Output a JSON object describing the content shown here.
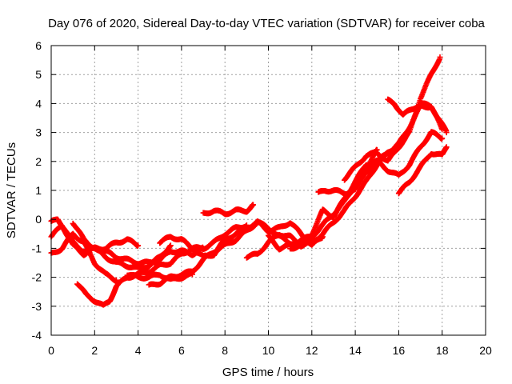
{
  "chart_data": {
    "type": "scatter",
    "title": "Day 076 of 2020, Sidereal Day-to-day VTEC variation (SDTVAR) for receiver coba",
    "xlabel": "GPS time / hours",
    "ylabel": "SDTVAR / TECUs",
    "xlim": [
      0,
      20
    ],
    "ylim": [
      -4,
      6
    ],
    "x_ticks": [
      0,
      2,
      4,
      6,
      8,
      10,
      12,
      14,
      16,
      18,
      20
    ],
    "y_ticks": [
      -4,
      -3,
      -2,
      -1,
      0,
      1,
      2,
      3,
      4,
      5,
      6
    ],
    "grid": true,
    "marker_color": "#ff0000",
    "marker": "plus",
    "series": [
      {
        "x": [
          0.0,
          0.5,
          1.0,
          1.5,
          2.0,
          2.5,
          3.0,
          3.5,
          4.0
        ],
        "y": [
          -0.6,
          -0.2,
          -0.9,
          -1.2,
          -1.0,
          -1.0,
          -0.8,
          -0.7,
          -0.9
        ]
      },
      {
        "x": [
          0.0,
          0.3,
          0.6,
          1.0,
          1.5,
          2.0,
          2.5,
          3.0,
          3.5,
          4.0,
          4.5,
          5.0,
          5.5,
          6.0,
          6.5,
          7.0
        ],
        "y": [
          -0.1,
          0.0,
          -0.3,
          -0.8,
          -1.1,
          -1.0,
          -1.1,
          -1.3,
          -1.4,
          -1.5,
          -1.5,
          -1.4,
          -1.1,
          -1.1,
          -1.2,
          -1.0
        ]
      },
      {
        "x": [
          0.0,
          0.5,
          1.0,
          1.5,
          2.0,
          2.5,
          3.0
        ],
        "y": [
          -1.2,
          -1.0,
          -0.5,
          -0.8,
          -1.5,
          -1.9,
          -2.1
        ]
      },
      {
        "x": [
          1.2,
          1.6,
          2.0,
          2.4,
          2.7,
          3.0,
          3.5,
          4.0,
          4.5,
          5.0,
          5.5,
          6.0,
          6.5,
          7.0,
          7.5,
          8.0,
          8.5,
          9.0
        ],
        "y": [
          -2.2,
          -2.6,
          -2.8,
          -3.0,
          -2.8,
          -2.3,
          -2.0,
          -1.9,
          -1.8,
          -1.6,
          -1.5,
          -1.2,
          -1.0,
          -1.0,
          -0.8,
          -0.5,
          -0.3,
          -0.2
        ]
      },
      {
        "x": [
          1.0,
          1.5,
          2.0,
          2.5,
          3.0,
          3.5,
          4.0,
          4.5,
          5.0,
          5.5
        ],
        "y": [
          -0.1,
          -0.7,
          -1.0,
          -1.3,
          -1.5,
          -1.6,
          -1.7,
          -1.6,
          -1.3,
          -0.9
        ]
      },
      {
        "x": [
          3.5,
          4.0,
          4.5,
          5.0,
          5.5,
          6.0,
          6.5
        ],
        "y": [
          -1.9,
          -2.0,
          -2.0,
          -1.9,
          -2.1,
          -2.0,
          -1.9
        ]
      },
      {
        "x": [
          4.5,
          5.0,
          5.5,
          6.0,
          6.5,
          7.0,
          7.5,
          8.0,
          8.5,
          9.0,
          9.5,
          10.0,
          10.5,
          11.0,
          11.5
        ],
        "y": [
          -2.3,
          -2.2,
          -2.0,
          -1.9,
          -1.8,
          -1.4,
          -1.1,
          -0.9,
          -0.7,
          -0.4,
          -0.1,
          -0.3,
          -0.6,
          -0.8,
          -0.9
        ]
      },
      {
        "x": [
          5.0,
          5.5,
          6.0,
          6.5,
          7.0,
          7.5,
          8.0,
          8.5,
          9.0,
          9.5,
          10.0,
          10.5,
          11.0,
          11.5,
          12.0,
          12.5
        ],
        "y": [
          -0.8,
          -0.6,
          -0.7,
          -1.0,
          -1.3,
          -1.2,
          -0.7,
          -0.5,
          -0.3,
          -0.1,
          -0.4,
          -0.3,
          -0.1,
          -0.5,
          -0.9,
          -0.6
        ]
      },
      {
        "x": [
          7.0,
          7.5,
          8.0,
          8.5,
          9.0,
          9.3
        ],
        "y": [
          0.2,
          0.3,
          0.2,
          0.3,
          0.3,
          0.5
        ]
      },
      {
        "x": [
          9.0,
          9.5,
          10.0,
          10.5,
          11.0,
          11.5,
          12.0,
          12.5,
          13.0,
          13.5,
          14.0,
          14.5,
          15.0,
          15.5,
          16.0
        ],
        "y": [
          -1.3,
          -1.2,
          -0.8,
          -0.5,
          -0.6,
          -0.9,
          -0.8,
          -0.5,
          -0.1,
          0.3,
          0.8,
          1.3,
          1.9,
          2.3,
          2.6
        ]
      },
      {
        "x": [
          10.0,
          10.5,
          11.0,
          11.5,
          12.0,
          12.5,
          13.0,
          13.5,
          14.0,
          14.5,
          15.0,
          15.5,
          16.0,
          16.5,
          17.0,
          17.5,
          18.0
        ],
        "y": [
          -0.6,
          -1.0,
          -0.9,
          -0.7,
          -0.6,
          -0.2,
          0.2,
          0.6,
          1.2,
          1.6,
          2.0,
          2.3,
          2.6,
          3.2,
          3.9,
          3.9,
          3.1
        ]
      },
      {
        "x": [
          11.0,
          11.5,
          12.0,
          12.5,
          13.0,
          13.5,
          14.0,
          14.5,
          15.0,
          15.5,
          16.0,
          16.5,
          17.0,
          17.5,
          18.0
        ],
        "y": [
          -1.0,
          -0.9,
          -0.5,
          0.3,
          0.1,
          0.7,
          1.3,
          1.9,
          2.0,
          1.7,
          1.5,
          1.9,
          2.5,
          3.0,
          2.8
        ]
      },
      {
        "x": [
          12.3,
          12.6,
          13.0,
          13.5,
          14.0,
          14.5,
          15.0
        ],
        "y": [
          0.9,
          1.0,
          1.0,
          0.9,
          1.0,
          1.7,
          2.4
        ]
      },
      {
        "x": [
          13.5,
          14.0,
          14.5,
          15.0,
          15.5,
          16.0,
          16.5,
          17.0,
          17.5,
          17.9
        ],
        "y": [
          1.4,
          1.8,
          2.2,
          2.3,
          2.0,
          2.5,
          3.0,
          4.2,
          5.0,
          5.6
        ]
      },
      {
        "x": [
          15.5,
          15.8,
          16.2,
          16.6,
          17.0,
          17.5,
          17.9,
          18.2
        ],
        "y": [
          4.1,
          4.0,
          3.6,
          3.8,
          4.0,
          3.9,
          3.4,
          3.0
        ]
      },
      {
        "x": [
          16.0,
          16.5,
          17.0,
          17.5,
          18.0,
          18.2
        ],
        "y": [
          0.9,
          1.3,
          1.8,
          2.3,
          2.2,
          2.5
        ]
      }
    ]
  }
}
